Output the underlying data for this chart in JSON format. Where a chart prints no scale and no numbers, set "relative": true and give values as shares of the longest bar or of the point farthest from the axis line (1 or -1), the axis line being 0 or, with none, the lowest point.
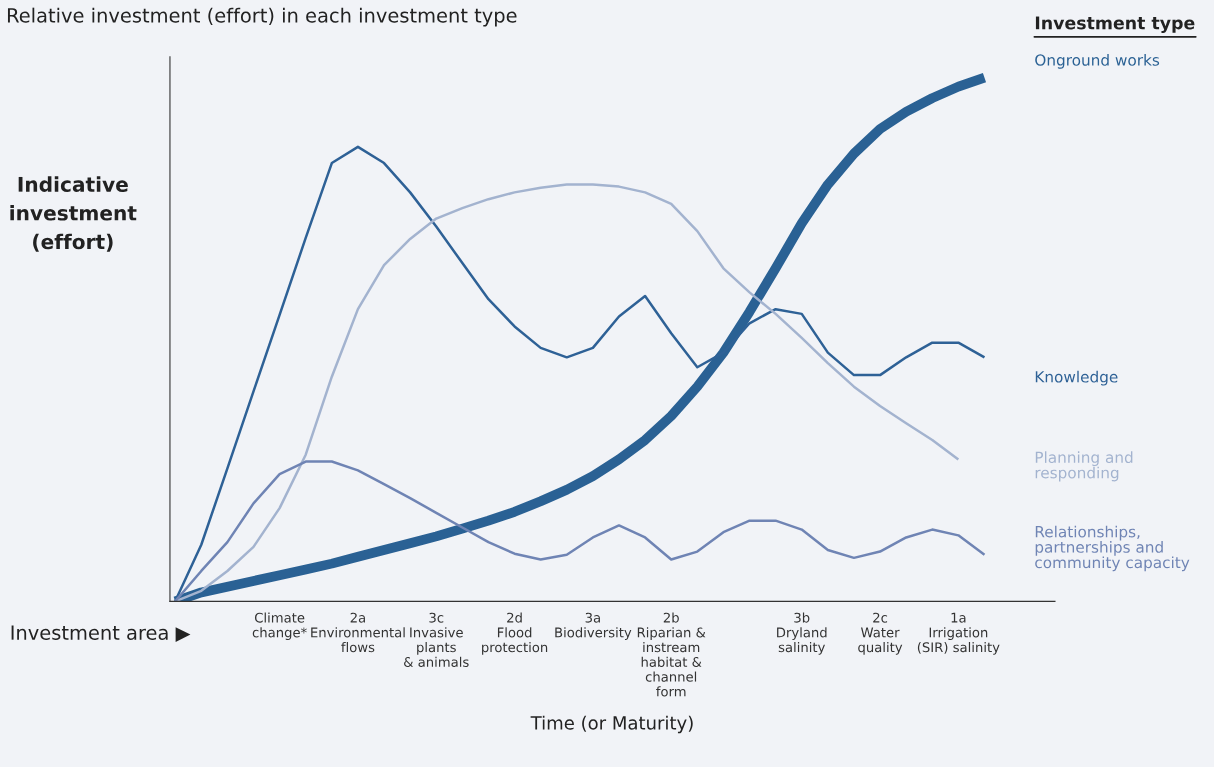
{
  "chart_data": {
    "type": "line",
    "relative": true,
    "title": "Relative investment (effort) in each investment type",
    "ylabel": "Indicative investment (effort)",
    "xlabel": "Time (or Maturity)",
    "legend_title": "Investment type",
    "legend": "right",
    "annotations": [
      "Investment area ▶"
    ],
    "categories": [
      null,
      null,
      null,
      null,
      "Climate\nchange*",
      null,
      null,
      "2a\nEnvironmental\nflows",
      null,
      null,
      "3c\nInvasive\nplants\n& animals",
      null,
      null,
      "2d\nFlood\nprotection",
      null,
      null,
      "3a\nBiodiversity",
      null,
      null,
      "2b\nRiparian &\ninstream\nhabitat &\nchannel\nform",
      null,
      null,
      null,
      null,
      "3b\nDryland\nsalinity",
      null,
      null,
      "2c\nWater\nquality",
      null,
      null,
      "1a\nIrrigation\n(SIR) salinity",
      null
    ],
    "series": [
      {
        "name": "Onground works",
        "color": "#2a6194",
        "values": [
          0,
          0.017,
          0.028,
          0.039,
          0.05,
          0.061,
          0.072,
          0.085,
          0.098,
          0.111,
          0.124,
          0.139,
          0.154,
          0.171,
          0.191,
          0.213,
          0.239,
          0.271,
          0.308,
          0.354,
          0.41,
          0.475,
          0.553,
          0.636,
          0.722,
          0.796,
          0.855,
          0.902,
          0.935,
          0.961,
          0.983,
          1
        ]
      },
      {
        "name": "Knowledge",
        "color": "#2e6196",
        "values": [
          0,
          0.108,
          0.254,
          0.401,
          0.547,
          0.694,
          0.837,
          0.868,
          0.837,
          0.781,
          0.716,
          0.646,
          0.577,
          0.525,
          0.484,
          0.466,
          0.484,
          0.544,
          0.583,
          0.512,
          0.447,
          0.475,
          0.531,
          0.558,
          0.549,
          0.475,
          0.432,
          0.432,
          0.466,
          0.494,
          0.494,
          0.466
        ]
      },
      {
        "name": "Planning and\nresponding",
        "color": "#a3b3cf",
        "values": [
          0,
          0.02,
          0.058,
          0.104,
          0.178,
          0.28,
          0.429,
          0.558,
          0.642,
          0.692,
          0.731,
          0.751,
          0.768,
          0.781,
          0.79,
          0.796,
          0.796,
          0.792,
          0.781,
          0.759,
          0.707,
          0.636,
          0.59,
          0.549,
          0.503,
          0.455,
          0.41,
          0.373,
          0.34,
          0.308,
          0.271,
          null
        ]
      },
      {
        "name": "Relationships,\npartnerships and\ncommunity capacity",
        "color": "#6f84b4",
        "values": [
          0,
          0.058,
          0.113,
          0.187,
          0.243,
          0.267,
          0.267,
          0.25,
          0.224,
          0.197,
          0.169,
          0.141,
          0.113,
          0.091,
          0.08,
          0.089,
          0.122,
          0.145,
          0.122,
          0.08,
          0.095,
          0.132,
          0.154,
          0.154,
          0.137,
          0.098,
          0.083,
          0.095,
          0.122,
          0.137,
          0.126,
          0.089
        ]
      }
    ]
  }
}
